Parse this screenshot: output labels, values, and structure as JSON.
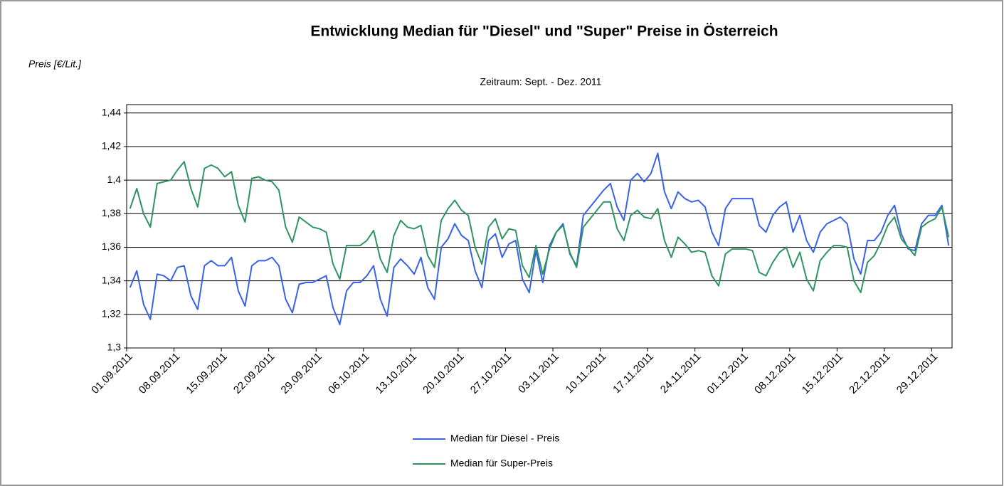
{
  "chart_data": {
    "type": "line",
    "title": "Entwicklung Median für \"Diesel\" und \"Super\" Preise in Österreich",
    "subtitle": "Zeitraum: Sept. - Dez. 2011",
    "y_label": "Preis [€/Lit.]",
    "categories": [
      "01.09.2011",
      null,
      null,
      null,
      null,
      null,
      null,
      "08.09.2011",
      null,
      null,
      null,
      null,
      null,
      null,
      "15.09.2011",
      null,
      null,
      null,
      null,
      null,
      null,
      "22.09.2011",
      null,
      null,
      null,
      null,
      null,
      null,
      "29.09.2011",
      null,
      null,
      null,
      null,
      null,
      null,
      "06.10.2011",
      null,
      null,
      null,
      null,
      null,
      null,
      "13.10.2011",
      null,
      null,
      null,
      null,
      null,
      null,
      "20.10.2011",
      null,
      null,
      null,
      null,
      null,
      null,
      "27.10.2011",
      null,
      null,
      null,
      null,
      null,
      null,
      "03.11.2011",
      null,
      null,
      null,
      null,
      null,
      null,
      "10.11.2011",
      null,
      null,
      null,
      null,
      null,
      null,
      "17.11.2011",
      null,
      null,
      null,
      null,
      null,
      null,
      "24.11.2011",
      null,
      null,
      null,
      null,
      null,
      null,
      "01.12.2011",
      null,
      null,
      null,
      null,
      null,
      null,
      "08.12.2011",
      null,
      null,
      null,
      null,
      null,
      null,
      "15.12.2011",
      null,
      null,
      null,
      null,
      null,
      null,
      "22.12.2011",
      null,
      null,
      null,
      null,
      null,
      null,
      "29.12.2011",
      null,
      null
    ],
    "series": [
      {
        "name": "Median für Diesel - Preis",
        "color": "#3a62e6",
        "values": [
          1.336,
          1.346,
          1.326,
          1.317,
          1.344,
          1.343,
          1.34,
          1.348,
          1.349,
          1.331,
          1.323,
          1.349,
          1.352,
          1.349,
          1.349,
          1.354,
          1.334,
          1.325,
          1.349,
          1.352,
          1.352,
          1.354,
          1.349,
          1.329,
          1.321,
          1.338,
          1.339,
          1.339,
          1.341,
          1.343,
          1.324,
          1.314,
          1.334,
          1.339,
          1.339,
          1.343,
          1.349,
          1.329,
          1.319,
          1.348,
          1.353,
          1.349,
          1.344,
          1.354,
          1.336,
          1.329,
          1.36,
          1.365,
          1.374,
          1.367,
          1.364,
          1.346,
          1.336,
          1.364,
          1.368,
          1.354,
          1.362,
          1.364,
          1.341,
          1.333,
          1.358,
          1.339,
          1.361,
          1.369,
          1.374,
          1.356,
          1.349,
          1.379,
          1.384,
          1.389,
          1.394,
          1.398,
          1.384,
          1.376,
          1.4,
          1.404,
          1.399,
          1.404,
          1.416,
          1.393,
          1.383,
          1.393,
          1.389,
          1.387,
          1.388,
          1.384,
          1.369,
          1.361,
          1.383,
          1.389,
          1.389,
          1.389,
          1.389,
          1.373,
          1.369,
          1.379,
          1.384,
          1.387,
          1.369,
          1.379,
          1.364,
          1.357,
          1.369,
          1.374,
          1.376,
          1.378,
          1.374,
          1.353,
          1.344,
          1.364,
          1.364,
          1.369,
          1.379,
          1.385,
          1.368,
          1.359,
          1.358,
          1.374,
          1.379,
          1.379,
          1.385,
          1.361
        ]
      },
      {
        "name": "Median für Super-Preis",
        "color": "#2e9460",
        "values": [
          1.383,
          1.395,
          1.38,
          1.372,
          1.398,
          1.399,
          1.4,
          1.406,
          1.411,
          1.395,
          1.384,
          1.407,
          1.409,
          1.407,
          1.402,
          1.405,
          1.385,
          1.375,
          1.401,
          1.402,
          1.4,
          1.399,
          1.394,
          1.372,
          1.363,
          1.378,
          1.375,
          1.372,
          1.371,
          1.369,
          1.35,
          1.341,
          1.361,
          1.361,
          1.361,
          1.364,
          1.37,
          1.353,
          1.345,
          1.367,
          1.376,
          1.372,
          1.371,
          1.373,
          1.355,
          1.348,
          1.376,
          1.383,
          1.388,
          1.382,
          1.379,
          1.36,
          1.35,
          1.372,
          1.377,
          1.365,
          1.371,
          1.37,
          1.349,
          1.342,
          1.361,
          1.344,
          1.359,
          1.369,
          1.373,
          1.357,
          1.348,
          1.372,
          1.377,
          1.382,
          1.387,
          1.387,
          1.371,
          1.364,
          1.379,
          1.382,
          1.378,
          1.377,
          1.383,
          1.364,
          1.354,
          1.366,
          1.362,
          1.357,
          1.358,
          1.357,
          1.343,
          1.337,
          1.356,
          1.359,
          1.359,
          1.359,
          1.358,
          1.345,
          1.343,
          1.351,
          1.357,
          1.36,
          1.348,
          1.357,
          1.341,
          1.334,
          1.352,
          1.357,
          1.361,
          1.361,
          1.36,
          1.34,
          1.333,
          1.351,
          1.355,
          1.363,
          1.373,
          1.378,
          1.365,
          1.36,
          1.355,
          1.372,
          1.375,
          1.377,
          1.384,
          1.366
        ]
      }
    ],
    "ylim": [
      1.3,
      1.445
    ],
    "yticks": [
      {
        "value": 1.3,
        "label": "1,3"
      },
      {
        "value": 1.32,
        "label": "1,32"
      },
      {
        "value": 1.34,
        "label": "1,34"
      },
      {
        "value": 1.36,
        "label": "1,36"
      },
      {
        "value": 1.38,
        "label": "1,38"
      },
      {
        "value": 1.4,
        "label": "1,4"
      },
      {
        "value": 1.42,
        "label": "1,42"
      },
      {
        "value": 1.44,
        "label": "1,44"
      }
    ],
    "grid": true
  }
}
